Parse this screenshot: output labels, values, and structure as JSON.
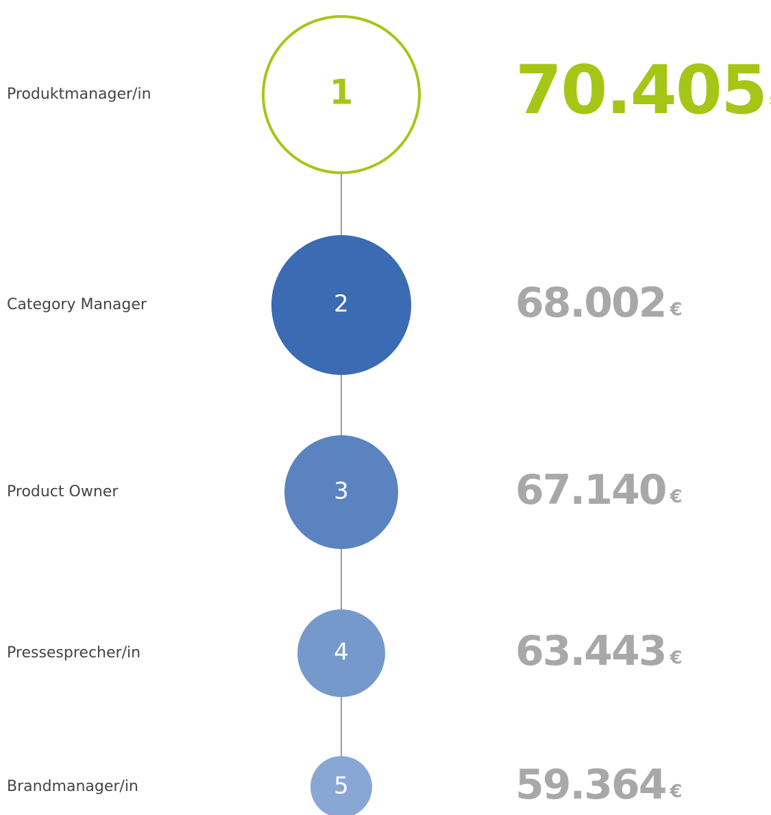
{
  "items": [
    {
      "rank": "1",
      "label": "Produktmanager/in",
      "salary": "70.405",
      "currency": "€"
    },
    {
      "rank": "2",
      "label": "Category Manager",
      "salary": "68.002",
      "currency": "€"
    },
    {
      "rank": "3",
      "label": "Product Owner",
      "salary": "67.140",
      "currency": "€"
    },
    {
      "rank": "4",
      "label": "Pressesprecher/in",
      "salary": "63.443",
      "currency": "€"
    },
    {
      "rank": "5",
      "label": "Brandmanager/in",
      "salary": "59.364",
      "currency": "€"
    }
  ]
}
